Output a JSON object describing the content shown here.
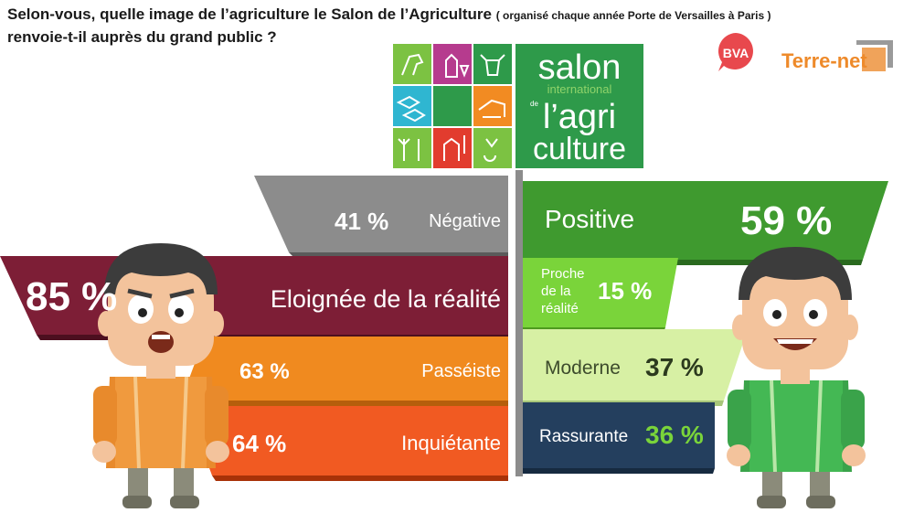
{
  "title": {
    "main": "Selon-vous, quelle image de l’agriculture le Salon de l’Agriculture",
    "note": "( organisé chaque année Porte de Versailles à Paris )",
    "line2": "renvoie-t-il auprès du grand public ?"
  },
  "logo": {
    "l1": "salon",
    "l2": "international",
    "l3": "de",
    "l4": "l’agri",
    "l5": "culture"
  },
  "brands": {
    "bva": "BVA",
    "terre": "Terre-net"
  },
  "colors": {
    "negative": "#8c8c8c",
    "positive": "#3f9a2f",
    "eloignee": "#7d1e36",
    "proche": "#7ad43a",
    "passeiste": "#f08a1f",
    "moderne": "#d7f0a4",
    "inquietante": "#f15a22",
    "rassurante": "#243f5e"
  },
  "chart_data": {
    "type": "bar",
    "title": "Selon-vous, quelle image de l’agriculture le Salon de l’Agriculture ( organisé chaque année Porte de Versailles à Paris ) renvoie-t-il auprès du grand public ?",
    "pairs": [
      {
        "left": {
          "label": "Négative",
          "value": 41,
          "text": "41 %"
        },
        "right": {
          "label": "Positive",
          "value": 59,
          "text": "59 %"
        }
      },
      {
        "left": {
          "label": "Eloignée de la réalité",
          "value": 85,
          "text": "85 %"
        },
        "right": {
          "label": "Proche de la réalité",
          "value": 15,
          "text": "15 %"
        }
      },
      {
        "left": {
          "label": "Passéiste",
          "value": 63,
          "text": "63 %"
        },
        "right": {
          "label": "Moderne",
          "value": 37,
          "text": "37 %"
        }
      },
      {
        "left": {
          "label": "Inquiétante",
          "value": 64,
          "text": "64 %"
        },
        "right": {
          "label": "Rassurante",
          "value": 36,
          "text": "36 %"
        }
      }
    ],
    "proche_lines": [
      "Proche",
      "de la",
      "réalité"
    ]
  }
}
